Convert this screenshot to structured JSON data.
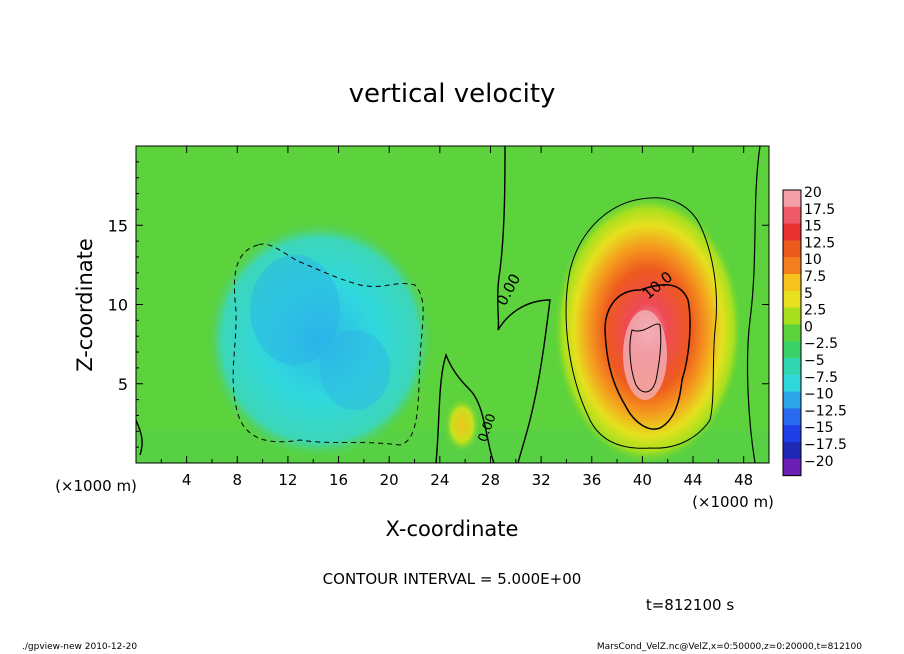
{
  "chart_data": {
    "type": "heatmap",
    "title": "vertical velocity",
    "xlabel": "X-coordinate",
    "ylabel": "Z-coordinate",
    "x_unit_left": "(×1000 m)",
    "x_unit_right": "(×1000 m)",
    "xlim": [
      0,
      50
    ],
    "ylim": [
      0,
      20
    ],
    "x_ticks": [
      4,
      8,
      12,
      16,
      20,
      24,
      28,
      32,
      36,
      40,
      44,
      48
    ],
    "y_ticks": [
      5,
      10,
      15
    ],
    "colorbar": {
      "labels": [
        "20",
        "17.5",
        "15",
        "12.5",
        "10",
        "7.5",
        "5",
        "2.5",
        "0",
        "−2.5",
        "−5",
        "−7.5",
        "−10",
        "−12.5",
        "−15",
        "−17.5",
        "−20"
      ],
      "colors": [
        "#f3a0a8",
        "#ee5a67",
        "#e83131",
        "#ec5a1e",
        "#f37f1e",
        "#f5c21e",
        "#e6e01e",
        "#a8e01e",
        "#5cd23c",
        "#3cd26a",
        "#2fd6b0",
        "#30d8dc",
        "#2ca6e8",
        "#2a6af0",
        "#1e3fe6",
        "#1e28b4",
        "#6a1eb4"
      ]
    },
    "contour_interval_text": "CONTOUR INTERVAL = 5.000E+00",
    "time_text": "t=812100 s",
    "contour_labels": [
      "0.00",
      "10.0",
      "0.00"
    ]
  },
  "footer": {
    "left": "./gpview-new   2010-12-20",
    "right": "MarsCond_VelZ.nc@VelZ,x=0:50000,z=0:20000,t=812100"
  }
}
